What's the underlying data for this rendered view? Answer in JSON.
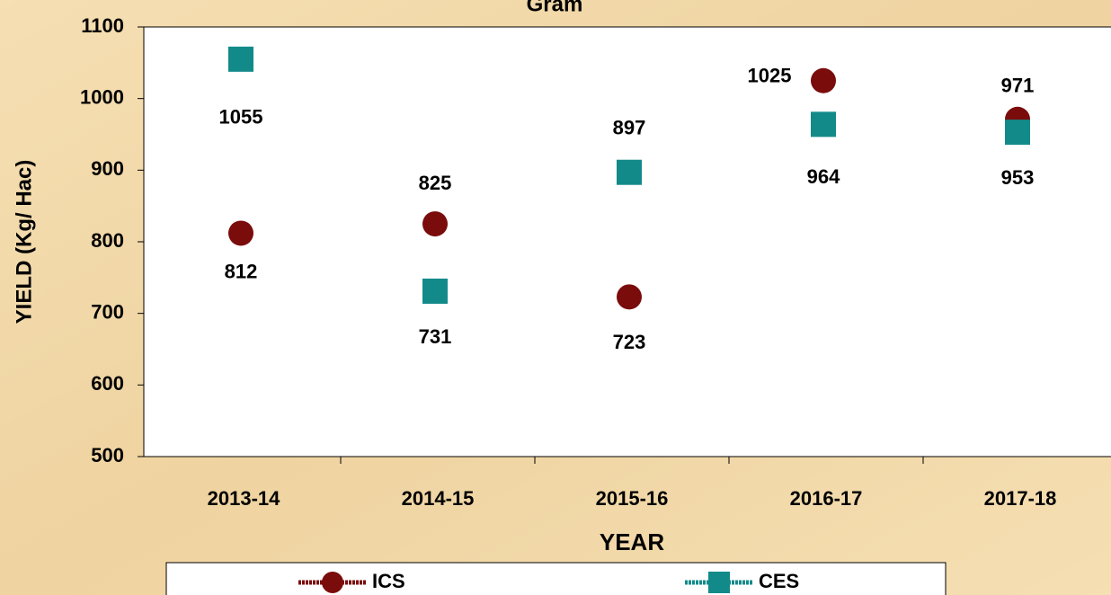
{
  "chart_data": {
    "type": "scatter",
    "title": "Gram",
    "x_label": "YEAR",
    "y_label": "YIELD (Kg/ Hac)",
    "categories": [
      "2013-14",
      "2014-15",
      "2015-16",
      "2016-17",
      "2017-18"
    ],
    "series": [
      {
        "name": "ICS",
        "color": "#7b0c0c",
        "marker": "circle",
        "values": [
          812,
          825,
          723,
          1025,
          971
        ]
      },
      {
        "name": "CES",
        "color": "#138a8a",
        "marker": "square",
        "values": [
          1055,
          731,
          897,
          964,
          953
        ]
      }
    ],
    "ylim": [
      500,
      1100
    ],
    "yticks": [
      500,
      600,
      700,
      800,
      900,
      1000,
      1100
    ],
    "grid": false,
    "legend": "bottom"
  }
}
